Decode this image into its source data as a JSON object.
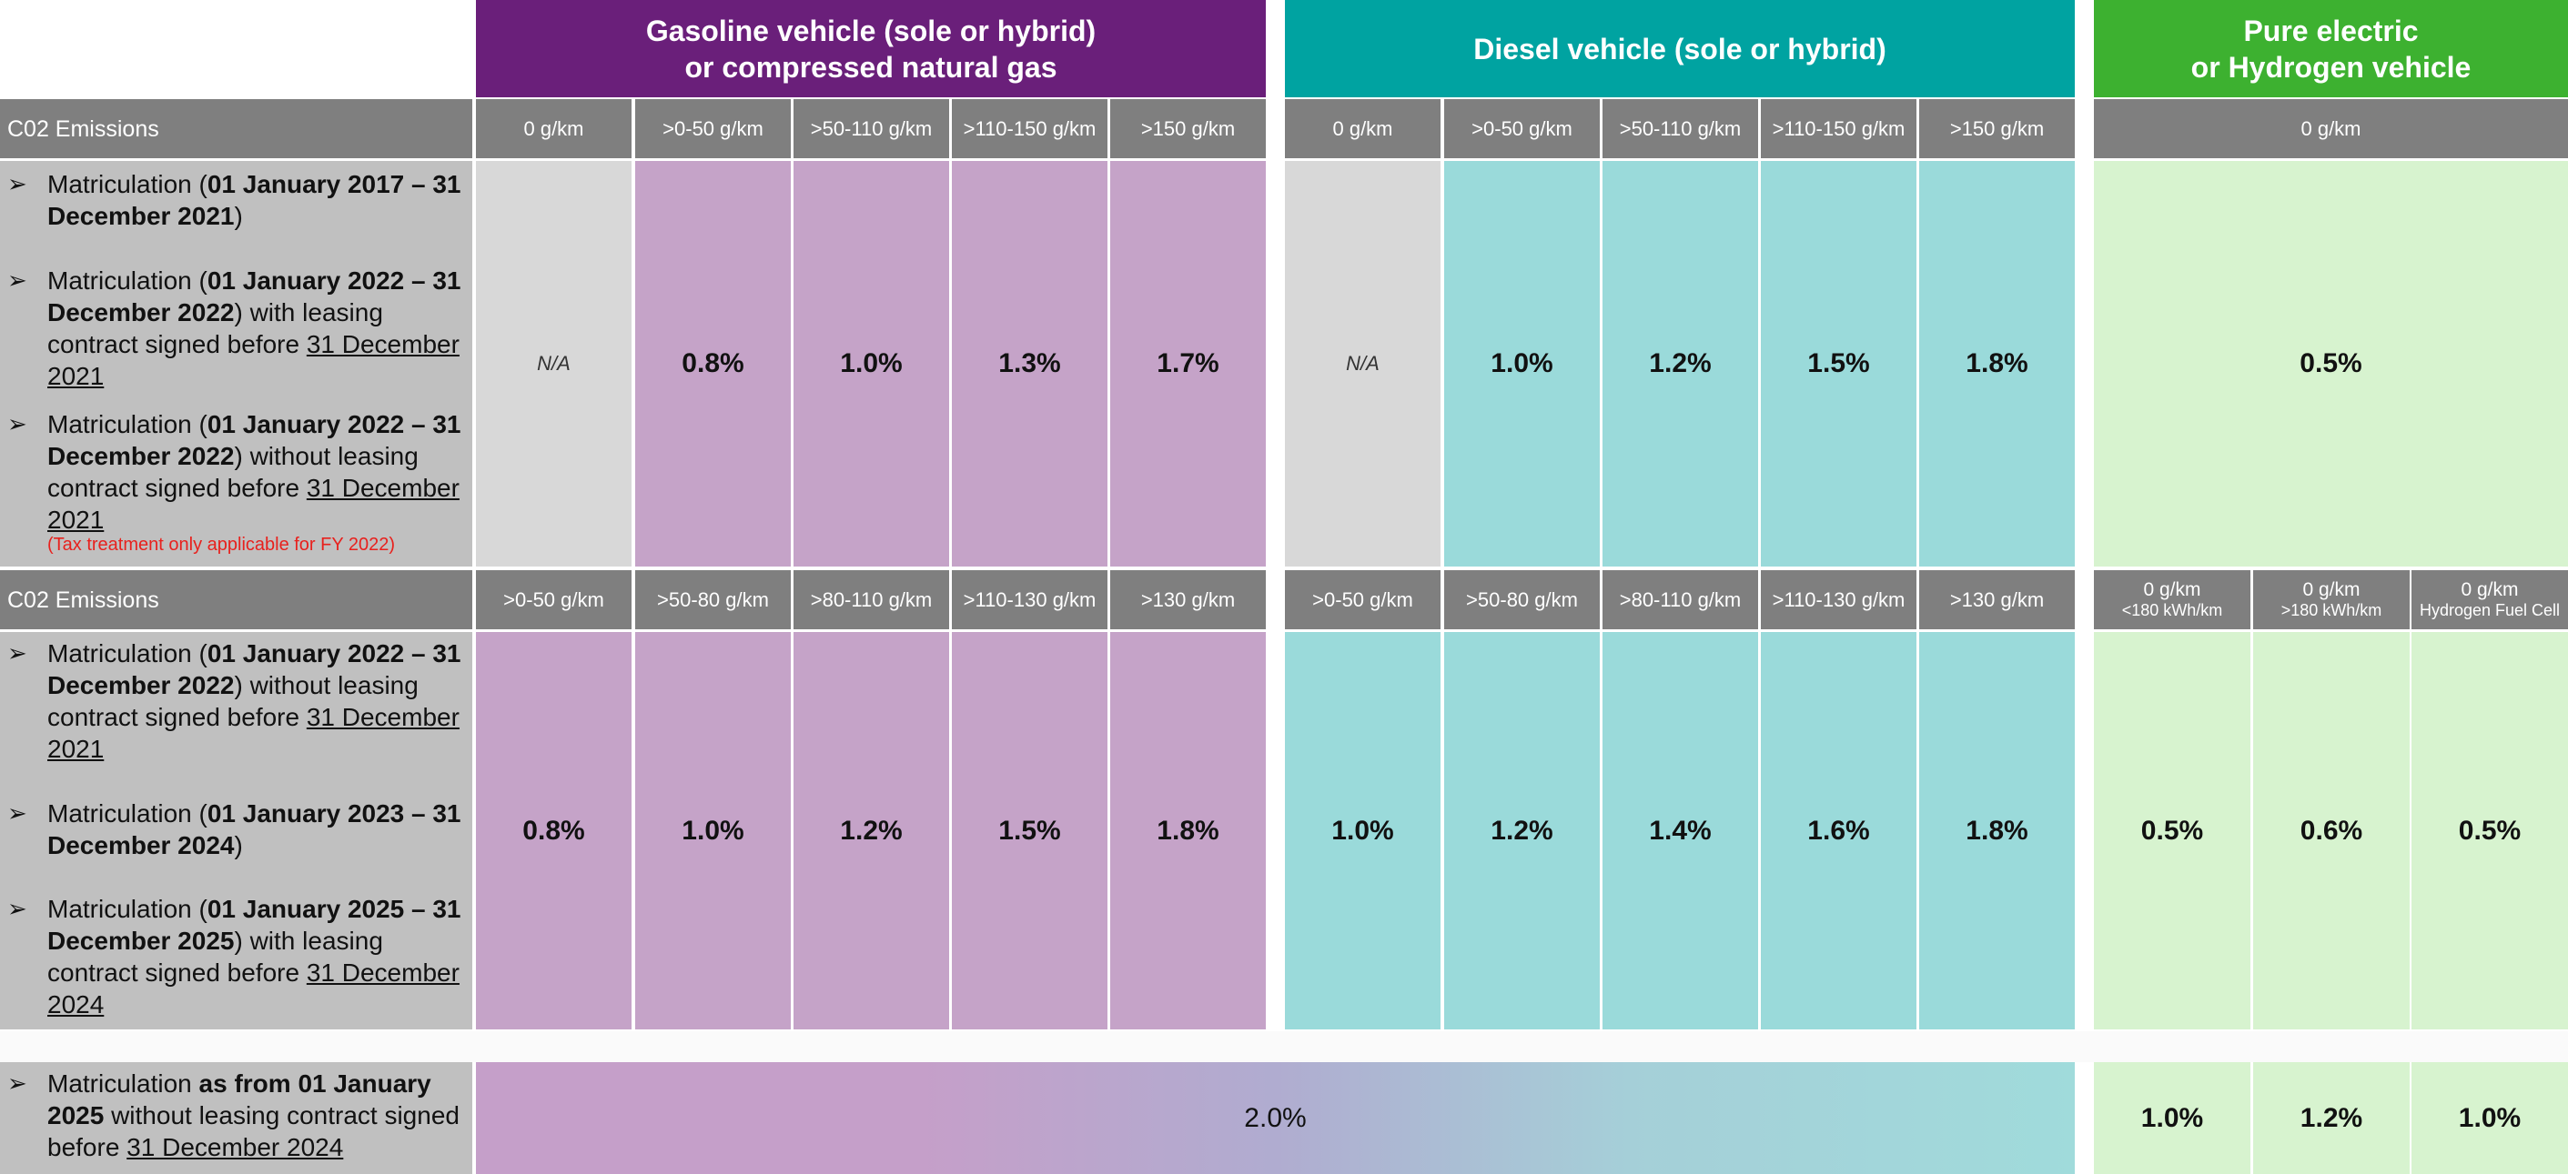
{
  "headers": {
    "gasoline": "Gasoline vehicle (sole or hybrid)\nor compressed natural gas",
    "diesel": "Diesel vehicle (sole or hybrid)",
    "electric": "Pure electric\nor Hydrogen vehicle"
  },
  "section1": {
    "label": "C02 Emissions",
    "gasoline_bands": [
      "0 g/km",
      ">0-50 g/km",
      ">50-110 g/km",
      ">110-150 g/km",
      ">150 g/km"
    ],
    "diesel_bands": [
      "0 g/km",
      ">0-50 g/km",
      ">50-110 g/km",
      ">110-150 g/km",
      ">150 g/km"
    ],
    "electric_band": "0 g/km",
    "items": [
      {
        "pre": "Matriculation (",
        "bold": "01 January 2017 – 31 December 2021",
        "post": ")",
        "underline": ""
      },
      {
        "pre": "Matriculation (",
        "bold": "01 January 2022 – 31 December 2022",
        "post": ") with leasing contract signed before ",
        "underline": "31 December 2021"
      },
      {
        "pre": "Matriculation (",
        "bold": "01 January 2022 – 31 December 2022",
        "post": ") without leasing contract signed before ",
        "underline": "31 December 2021"
      }
    ],
    "note": "(Tax treatment only applicable for FY 2022)",
    "gasoline_values": [
      "N/A",
      "0.8%",
      "1.0%",
      "1.3%",
      "1.7%"
    ],
    "diesel_values": [
      "N/A",
      "1.0%",
      "1.2%",
      "1.5%",
      "1.8%"
    ],
    "electric_value": "0.5%"
  },
  "section2": {
    "label": "C02 Emissions",
    "gasoline_bands": [
      ">0-50 g/km",
      ">50-80 g/km",
      ">80-110 g/km",
      ">110-130 g/km",
      ">130 g/km"
    ],
    "diesel_bands": [
      ">0-50 g/km",
      ">50-80 g/km",
      ">80-110 g/km",
      ">110-130 g/km",
      ">130 g/km"
    ],
    "electric_bands": [
      {
        "line1": "0 g/km",
        "line2": "<180 kWh/km"
      },
      {
        "line1": "0 g/km",
        "line2": ">180 kWh/km"
      },
      {
        "line1": "0 g/km",
        "line2": "Hydrogen Fuel Cell"
      }
    ],
    "items": [
      {
        "pre": "Matriculation (",
        "bold": "01 January 2022 – 31 December 2022",
        "post": ") without leasing contract signed before ",
        "underline": "31 December 2021"
      },
      {
        "pre": "Matriculation (",
        "bold": "01 January 2023 – 31 December 2024",
        "post": ")",
        "underline": ""
      },
      {
        "pre": "Matriculation (",
        "bold": "01 January 2025 – 31 December 2025",
        "post": ") with leasing contract signed before ",
        "underline": "31 December 2024"
      }
    ],
    "gasoline_values": [
      "0.8%",
      "1.0%",
      "1.2%",
      "1.5%",
      "1.8%"
    ],
    "diesel_values": [
      "1.0%",
      "1.2%",
      "1.4%",
      "1.6%",
      "1.8%"
    ],
    "electric_values": [
      "0.5%",
      "0.6%",
      "0.5%"
    ]
  },
  "section3": {
    "item": {
      "pre": "Matriculation ",
      "bold": "as from 01 January 2025",
      "post": " without leasing contract signed before ",
      "underline": "31 December 2024"
    },
    "combined_value": "2.0%",
    "electric_values": [
      "1.0%",
      "1.2%",
      "1.0%"
    ]
  },
  "colors": {
    "gasoline_header": "#6a1f7a",
    "diesel_header": "#00a3a1",
    "electric_header": "#3db130",
    "subheader": "#7f7f7f",
    "gasoline_fill": "#c5a3c8",
    "diesel_fill": "#9adada",
    "electric_fill": "#d7f3cf",
    "label_fill": "#c0c0c0",
    "note_text": "#e8211d"
  }
}
